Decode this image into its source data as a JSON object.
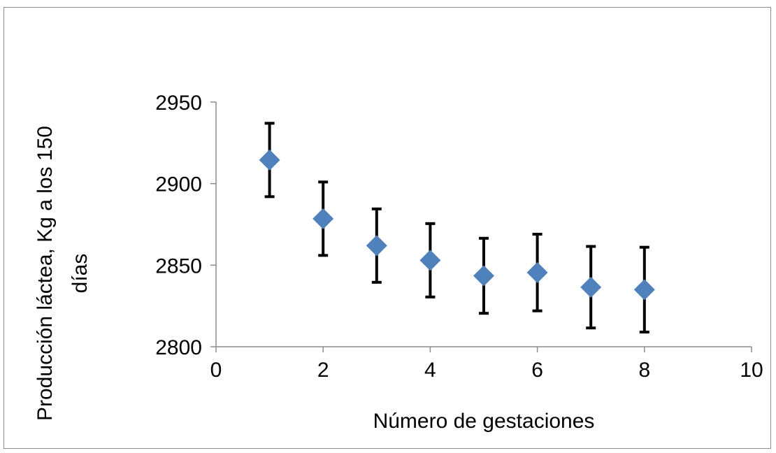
{
  "chart_data": {
    "type": "scatter",
    "xlabel": "Número de gestaciones",
    "ylabel_lines": [
      "Producción láctea, Kg  a los 150",
      "días"
    ],
    "xlim": [
      0,
      10
    ],
    "ylim": [
      2800,
      2950
    ],
    "x_ticks": [
      0,
      2,
      4,
      6,
      8,
      10
    ],
    "y_ticks": [
      2800,
      2850,
      2900,
      2950
    ],
    "grid": false,
    "legend": "none",
    "series": [
      {
        "marker": "diamond",
        "color": "#4F81BD",
        "error_bar_color": "#000000",
        "points": [
          {
            "x": 1,
            "y": 2914.5,
            "err": 22.5
          },
          {
            "x": 2,
            "y": 2878.5,
            "err": 22.5
          },
          {
            "x": 3,
            "y": 2862,
            "err": 22.5
          },
          {
            "x": 4,
            "y": 2853,
            "err": 22.5
          },
          {
            "x": 5,
            "y": 2843.5,
            "err": 23
          },
          {
            "x": 6,
            "y": 2845.5,
            "err": 23.5
          },
          {
            "x": 7,
            "y": 2836.5,
            "err": 25
          },
          {
            "x": 8,
            "y": 2835,
            "err": 26
          }
        ]
      }
    ]
  }
}
